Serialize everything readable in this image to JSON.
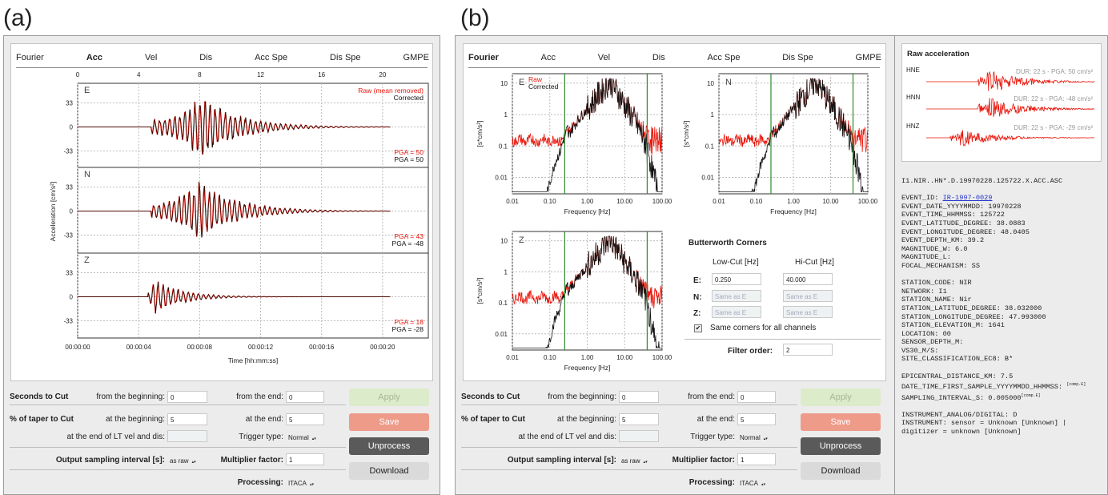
{
  "panels": {
    "a": "(a)",
    "b": "(b)"
  },
  "tabs": [
    "Fourier",
    "Acc",
    "Vel",
    "Dis",
    "Acc Spe",
    "Dis Spe",
    "GMPE"
  ],
  "a": {
    "active_tab": "Acc",
    "legend": {
      "raw": "Raw (mean removed)",
      "corrected": "Corrected"
    },
    "channels": [
      {
        "name": "E",
        "pga_raw": "PGA = 50",
        "pga_corr": "PGA = 50"
      },
      {
        "name": "N",
        "pga_raw": "PGA = 43",
        "pga_corr": "PGA = -48"
      },
      {
        "name": "Z",
        "pga_raw": "PGA = 18",
        "pga_corr": "PGA = -28"
      }
    ],
    "ylabel": "Acceleration [cm/s²]",
    "xlabel": "Time [hh:mm:ss]"
  },
  "b": {
    "active_tab": "Fourier",
    "legend": {
      "raw": "Raw",
      "corrected": "Corrected"
    },
    "spectra": [
      {
        "name": "E"
      },
      {
        "name": "N"
      },
      {
        "name": "Z"
      }
    ],
    "ylabel": "[s*cm/s²]",
    "xlabel": "Frequency [Hz]",
    "butterworth": {
      "title": "Butterworth Corners",
      "low_header": "Low-Cut [Hz]",
      "hi_header": "Hi-Cut [Hz]",
      "rows": [
        {
          "label": "E:",
          "low": "0.250",
          "hi": "40.000"
        },
        {
          "label": "N:",
          "low": "Same as E",
          "hi": "Same as E"
        },
        {
          "label": "Z:",
          "low": "Same as E",
          "hi": "Same as E"
        }
      ],
      "same_corners": "Same corners for all channels",
      "filter_order_label": "Filter order:",
      "filter_order": "2"
    },
    "raw_box": {
      "title": "Raw acceleration",
      "traces": [
        {
          "name": "HNE",
          "info": "DUR: 22 s - PGA: 50 cm/s²"
        },
        {
          "name": "HNN",
          "info": "DUR: 22 s - PGA: -48 cm/s²"
        },
        {
          "name": "HNZ",
          "info": "DUR: 22 s - PGA: -29 cm/s²"
        }
      ]
    },
    "metadata": {
      "filename": "I1.NIR..HN*.D.19970228.125722.X.ACC.ASC",
      "event_id_label": "EVENT_ID: ",
      "event_id": "IR-1997-0029",
      "event_lines": [
        "EVENT_DATE_YYYYMMDD: 19970228",
        "EVENT_TIME_HHMMSS: 125722",
        "EVENT_LATITUDE_DEGREE: 38.0883",
        "EVENT_LONGITUDE_DEGREE: 48.0405",
        "EVENT_DEPTH_KM: 39.2",
        "MAGNITUDE_W: 6.0",
        "MAGNITUDE_L:",
        "FOCAL_MECHANISM: SS"
      ],
      "station_lines": [
        "STATION_CODE: NIR",
        "NETWORK: I1",
        "STATION_NAME: Nir",
        "STATION_LATITUDE_DEGREE: 38.032000",
        "STATION_LONGITUDE_DEGREE: 47.993000",
        "STATION_ELEVATION_M: 1641",
        "LOCATION: 00",
        "SENSOR_DEPTH_M:",
        "VS30_M/S:",
        "SITE_CLASSIFICATION_EC8: B*"
      ],
      "epi_line": "EPICENTRAL_DISTANCE_KM: 7.5",
      "date_first_line": "DATE_TIME_FIRST_SAMPLE_YYYYMMDD_HHMMSS:",
      "date_first_tag": "[comp.E]",
      "sampling_line": "SAMPLING_INTERVAL_S: 0.005000",
      "sampling_tag": "[comp.E]",
      "instrument_lines": [
        "INSTRUMENT_ANALOG/DIGITAL: D",
        "INSTRUMENT: sensor = Unknown [Unknown] |",
        "digitizer = unknown [Unknown]"
      ]
    }
  },
  "controls": {
    "seconds_to_cut": "Seconds to Cut",
    "from_beginning": "from the beginning:",
    "from_beginning_val": "0",
    "from_end": "from the end:",
    "from_end_val": "0",
    "taper": "% of taper to Cut",
    "at_beginning": "at the beginning:",
    "at_beginning_val": "5",
    "at_end": "at the end:",
    "at_end_val": "5",
    "lt_label": "at the end of LT vel and dis:",
    "trigger_label": "Trigger type:",
    "trigger_val": "Normal",
    "output_label": "Output sampling interval [s]:",
    "output_val": "as raw",
    "multiplier_label": "Multiplier factor:",
    "multiplier_val": "1",
    "processing_label": "Processing:",
    "processing_val": "ITACA",
    "buttons": {
      "apply": "Apply",
      "save": "Save",
      "unprocess": "Unprocess",
      "download": "Download"
    }
  },
  "colors": {
    "raw": "#e8150a",
    "corrected": "#111111",
    "corner": "#2e8b2e",
    "save": "#ee9b8a",
    "apply": "#dcebc9",
    "unprocess": "#5a5a5a"
  },
  "chart_data": [
    {
      "type": "line",
      "title": "",
      "x_ticks_top": [
        "0",
        "4",
        "8",
        "12",
        "16",
        "20"
      ],
      "x_ticks_bottom": [
        "00:00:00",
        "00:00:04",
        "00:00:08",
        "00:00:12",
        "00:00:16",
        "00:00:20"
      ],
      "y_ticks": [
        "33",
        "0",
        "-33"
      ],
      "xlabel": "Time [hh:mm:ss]",
      "ylabel": "Acceleration [cm/s²]",
      "series": [
        {
          "name": "Raw (mean removed)"
        },
        {
          "name": "Corrected"
        }
      ],
      "panels": [
        {
          "channel": "E",
          "pga_raw": 50,
          "pga_corrected": 50,
          "peak_time_s": 8.2
        },
        {
          "channel": "N",
          "pga_raw": 43,
          "pga_corrected": -48,
          "peak_time_s": 8.0
        },
        {
          "channel": "Z",
          "pga_raw": 18,
          "pga_corrected": -28,
          "peak_time_s": 5.0
        }
      ],
      "xlim": [
        0,
        23
      ],
      "ylim": [
        -55,
        55
      ]
    },
    {
      "type": "line",
      "title": "",
      "x_scale": "log",
      "y_scale": "log",
      "x_ticks": [
        "0.01",
        "0.10",
        "1.00",
        "10.00",
        "100.00"
      ],
      "y_ticks": [
        "10",
        "1",
        "0.1",
        "0.01"
      ],
      "xlabel": "Frequency [Hz]",
      "ylabel": "[s*cm/s²]",
      "series": [
        {
          "name": "Raw"
        },
        {
          "name": "Corrected"
        }
      ],
      "corner_frequencies_hz": [
        0.25,
        40.0
      ],
      "panels": [
        "E",
        "N",
        "Z"
      ],
      "xlim": [
        0.01,
        100
      ],
      "ylim": [
        0.003,
        20
      ]
    }
  ]
}
